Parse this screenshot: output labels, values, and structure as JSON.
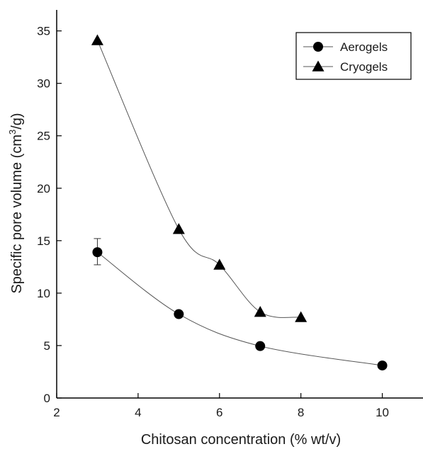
{
  "chart_data": {
    "type": "scatter",
    "title": "",
    "xlabel": "Chitosan concentration (% wt/v)",
    "ylabel_parts": {
      "pre": "Specific pore volume (cm",
      "sup": "3",
      "post": "/g)"
    },
    "xlim": [
      2,
      11
    ],
    "ylim": [
      0,
      37
    ],
    "x_ticks": [
      2,
      4,
      6,
      8,
      10
    ],
    "y_ticks": [
      0,
      5,
      10,
      15,
      20,
      25,
      30,
      35
    ],
    "grid": false,
    "legend_position": "top-right",
    "series": [
      {
        "name": "Aerogels",
        "marker": "circle",
        "color": "#000000",
        "x": [
          3,
          5,
          7,
          10
        ],
        "y": [
          13.9,
          8.0,
          4.95,
          3.1
        ],
        "error_bars": [
          {
            "x": 3,
            "low": 12.7,
            "high": 15.2
          }
        ],
        "fit_curve": "smooth"
      },
      {
        "name": "Cryogels",
        "marker": "triangle",
        "color": "#000000",
        "x": [
          3,
          5,
          6,
          7,
          8
        ],
        "y": [
          34.1,
          16.1,
          12.7,
          8.2,
          7.7
        ],
        "fit_curve": "smooth"
      }
    ]
  }
}
